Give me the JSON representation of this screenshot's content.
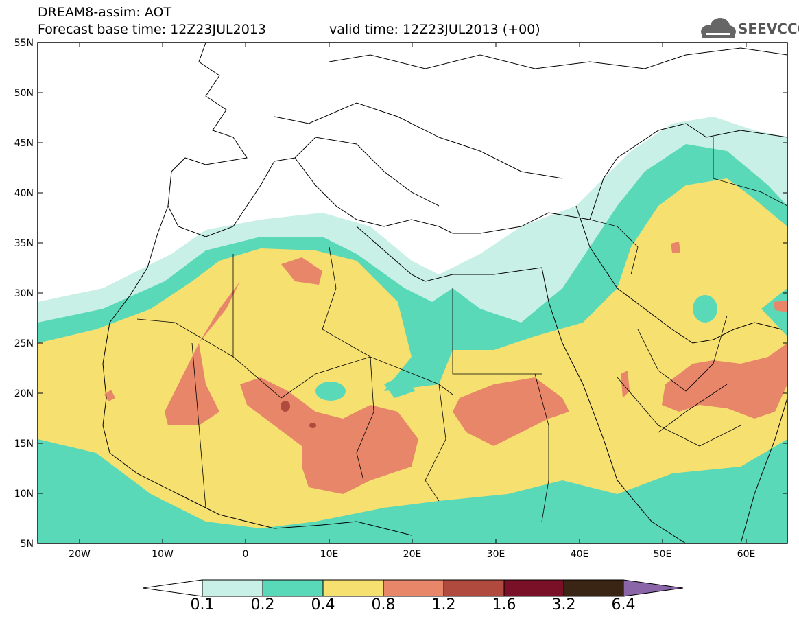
{
  "header": {
    "title": "DREAM8-assim: AOT",
    "base_time": "Forecast base time: 12Z23JUL2013",
    "valid_time": "valid time: 12Z23JUL2013 (+00)"
  },
  "logo": {
    "text": "SEEVCCC",
    "icon": "cloud-icon"
  },
  "axes": {
    "lat_labels": [
      "55N",
      "50N",
      "45N",
      "40N",
      "35N",
      "30N",
      "25N",
      "20N",
      "15N",
      "10N",
      "5N"
    ],
    "lon_labels": [
      "20W",
      "10W",
      "0",
      "10E",
      "20E",
      "30E",
      "40E",
      "50E",
      "60E"
    ]
  },
  "colorbar": {
    "levels": [
      "0.1",
      "0.2",
      "0.4",
      "0.8",
      "1.2",
      "1.6",
      "3.2",
      "6.4"
    ],
    "colors": [
      "#c8f0e6",
      "#5ad9b8",
      "#f5e070",
      "#e8866a",
      "#b04a3e",
      "#7a1028",
      "#3a2414",
      "#8a66a8"
    ]
  }
}
